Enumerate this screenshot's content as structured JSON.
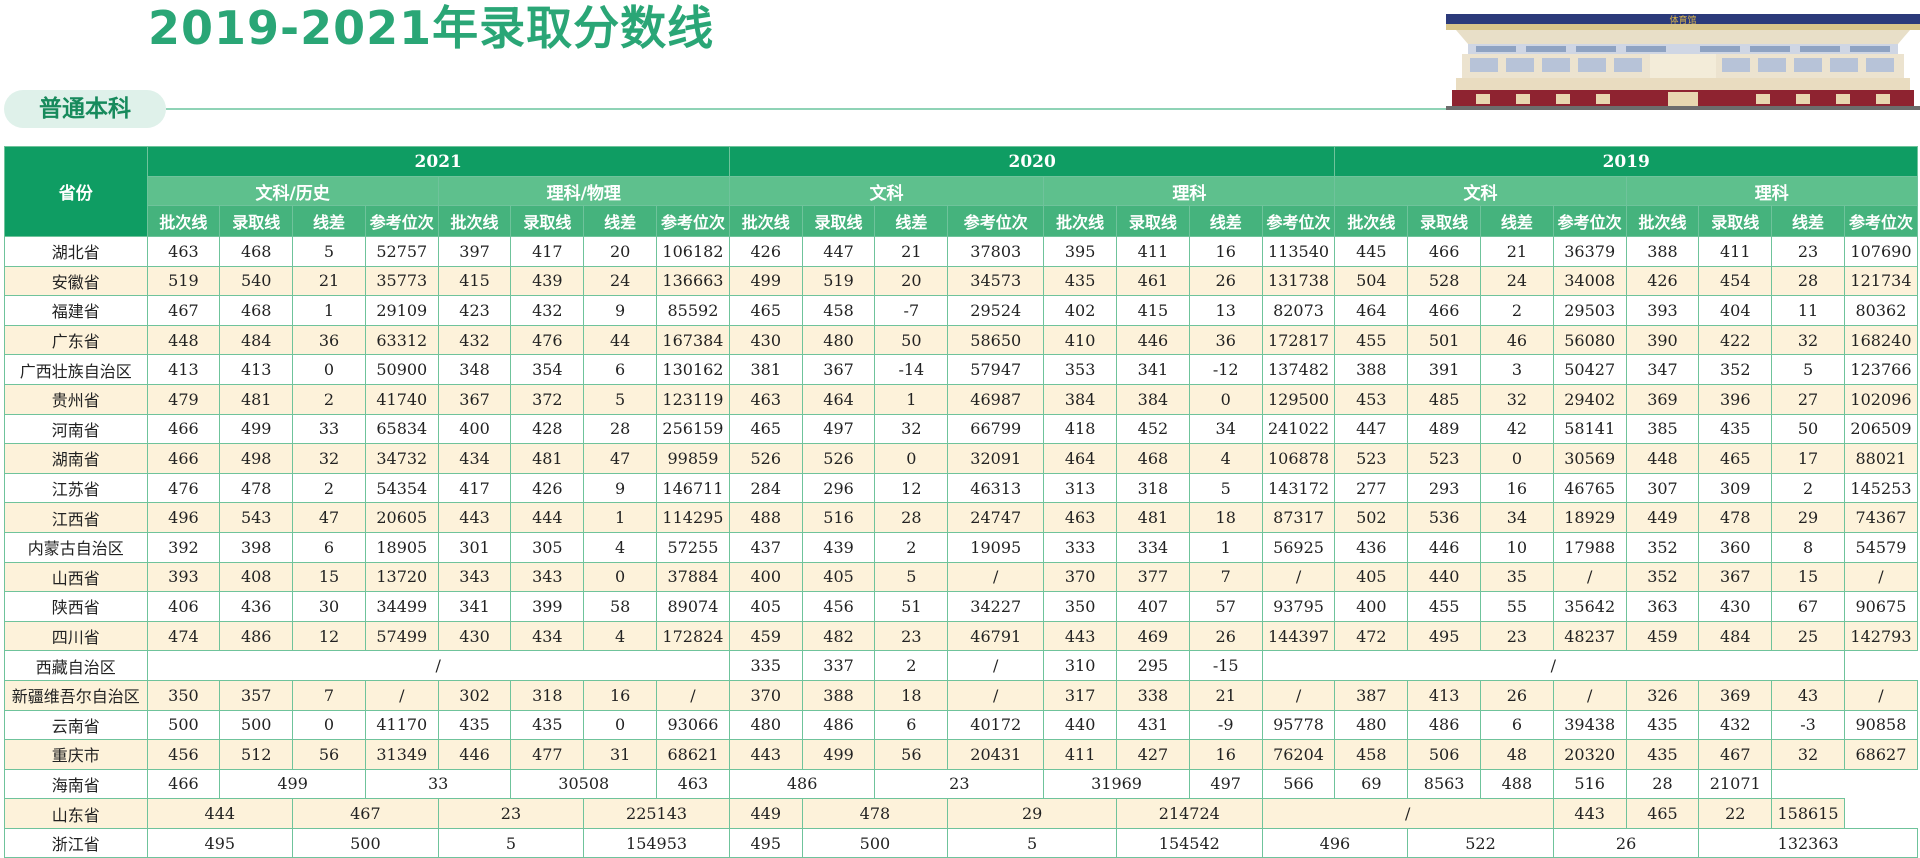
{
  "title": "2019-2021年录取分数线",
  "section_label": "普通本科",
  "building_sign": "体育馆",
  "colors": {
    "accent": "#0f9d63",
    "title": "#2aa676",
    "stripe": "#fdf2da"
  },
  "table": {
    "province_header": "省份",
    "years": [
      "2021",
      "2020",
      "2019"
    ],
    "groups": [
      "文科/历史",
      "理科/物理",
      "文科",
      "理科",
      "文科",
      "理科"
    ],
    "columns": [
      "批次线",
      "录取线",
      "线差",
      "参考位次"
    ],
    "rows": [
      {
        "name": "湖北省",
        "cells": [
          "463",
          "468",
          "5",
          "52757",
          "397",
          "417",
          "20",
          "106182",
          "426",
          "447",
          "21",
          "37803",
          "395",
          "411",
          "16",
          "113540",
          "445",
          "466",
          "21",
          "36379",
          "388",
          "411",
          "23",
          "107690"
        ]
      },
      {
        "name": "安徽省",
        "cells": [
          "519",
          "540",
          "21",
          "35773",
          "415",
          "439",
          "24",
          "136663",
          "499",
          "519",
          "20",
          "34573",
          "435",
          "461",
          "26",
          "131738",
          "504",
          "528",
          "24",
          "34008",
          "426",
          "454",
          "28",
          "121734"
        ]
      },
      {
        "name": "福建省",
        "cells": [
          "467",
          "468",
          "1",
          "29109",
          "423",
          "432",
          "9",
          "85592",
          "465",
          "458",
          "-7",
          "29524",
          "402",
          "415",
          "13",
          "82073",
          "464",
          "466",
          "2",
          "29503",
          "393",
          "404",
          "11",
          "80362"
        ]
      },
      {
        "name": "广东省",
        "cells": [
          "448",
          "484",
          "36",
          "63312",
          "432",
          "476",
          "44",
          "167384",
          "430",
          "480",
          "50",
          "58650",
          "410",
          "446",
          "36",
          "172817",
          "455",
          "501",
          "46",
          "56080",
          "390",
          "422",
          "32",
          "168240"
        ]
      },
      {
        "name": "广西壮族自治区",
        "cells": [
          "413",
          "413",
          "0",
          "50900",
          "348",
          "354",
          "6",
          "130162",
          "381",
          "367",
          "-14",
          "57947",
          "353",
          "341",
          "-12",
          "137482",
          "388",
          "391",
          "3",
          "50427",
          "347",
          "352",
          "5",
          "123766"
        ]
      },
      {
        "name": "贵州省",
        "cells": [
          "479",
          "481",
          "2",
          "41740",
          "367",
          "372",
          "5",
          "123119",
          "463",
          "464",
          "1",
          "46987",
          "384",
          "384",
          "0",
          "129500",
          "453",
          "485",
          "32",
          "29402",
          "369",
          "396",
          "27",
          "102096"
        ]
      },
      {
        "name": "河南省",
        "cells": [
          "466",
          "499",
          "33",
          "65834",
          "400",
          "428",
          "28",
          "256159",
          "465",
          "497",
          "32",
          "66799",
          "418",
          "452",
          "34",
          "241022",
          "447",
          "489",
          "42",
          "58141",
          "385",
          "435",
          "50",
          "206509"
        ]
      },
      {
        "name": "湖南省",
        "cells": [
          "466",
          "498",
          "32",
          "34732",
          "434",
          "481",
          "47",
          "99859",
          "526",
          "526",
          "0",
          "32091",
          "464",
          "468",
          "4",
          "106878",
          "523",
          "523",
          "0",
          "30569",
          "448",
          "465",
          "17",
          "88021"
        ]
      },
      {
        "name": "江苏省",
        "cells": [
          "476",
          "478",
          "2",
          "54354",
          "417",
          "426",
          "9",
          "146711",
          "284",
          "296",
          "12",
          "46313",
          "313",
          "318",
          "5",
          "143172",
          "277",
          "293",
          "16",
          "46765",
          "307",
          "309",
          "2",
          "145253"
        ]
      },
      {
        "name": "江西省",
        "cells": [
          "496",
          "543",
          "47",
          "20605",
          "443",
          "444",
          "1",
          "114295",
          "488",
          "516",
          "28",
          "24747",
          "463",
          "481",
          "18",
          "87317",
          "502",
          "536",
          "34",
          "18929",
          "449",
          "478",
          "29",
          "74367"
        ]
      },
      {
        "name": "内蒙古自治区",
        "cells": [
          "392",
          "398",
          "6",
          "18905",
          "301",
          "305",
          "4",
          "57255",
          "437",
          "439",
          "2",
          "19095",
          "333",
          "334",
          "1",
          "56925",
          "436",
          "446",
          "10",
          "17988",
          "352",
          "360",
          "8",
          "54579"
        ]
      },
      {
        "name": "山西省",
        "cells": [
          "393",
          "408",
          "15",
          "13720",
          "343",
          "343",
          "0",
          "37884",
          "400",
          "405",
          "5",
          "/",
          "370",
          "377",
          "7",
          "/",
          "405",
          "440",
          "35",
          "/",
          "352",
          "367",
          "15",
          "/"
        ]
      },
      {
        "name": "陕西省",
        "cells": [
          "406",
          "436",
          "30",
          "34499",
          "341",
          "399",
          "58",
          "89074",
          "405",
          "456",
          "51",
          "34227",
          "350",
          "407",
          "57",
          "93795",
          "400",
          "455",
          "55",
          "35642",
          "363",
          "430",
          "67",
          "90675"
        ]
      },
      {
        "name": "四川省",
        "cells": [
          "474",
          "486",
          "12",
          "57499",
          "430",
          "434",
          "4",
          "172824",
          "459",
          "482",
          "23",
          "46791",
          "443",
          "469",
          "26",
          "144397",
          "472",
          "495",
          "23",
          "48237",
          "459",
          "484",
          "25",
          "142793"
        ]
      },
      {
        "name": "西藏自治区",
        "special": "tibet",
        "cells": [
          "/",
          "335",
          "337",
          "2",
          "/",
          "310",
          "295",
          "-15",
          "/"
        ]
      },
      {
        "name": "新疆维吾尔自治区",
        "cells": [
          "350",
          "357",
          "7",
          "/",
          "302",
          "318",
          "16",
          "/",
          "370",
          "388",
          "18",
          "/",
          "317",
          "338",
          "21",
          "/",
          "387",
          "413",
          "26",
          "/",
          "326",
          "369",
          "43",
          "/"
        ]
      },
      {
        "name": "云南省",
        "cells": [
          "500",
          "500",
          "0",
          "41170",
          "435",
          "435",
          "0",
          "93066",
          "480",
          "486",
          "6",
          "40172",
          "440",
          "431",
          "-9",
          "95778",
          "480",
          "486",
          "6",
          "39438",
          "435",
          "432",
          "-3",
          "90858"
        ]
      },
      {
        "name": "重庆市",
        "cells": [
          "456",
          "512",
          "56",
          "31349",
          "446",
          "477",
          "31",
          "68621",
          "443",
          "499",
          "56",
          "20431",
          "411",
          "427",
          "16",
          "76204",
          "458",
          "506",
          "48",
          "20320",
          "435",
          "467",
          "32",
          "68627"
        ]
      },
      {
        "name": "海南省",
        "special": "hainan",
        "cells": [
          "466",
          "499",
          "33",
          "30508",
          "463",
          "486",
          "23",
          "31969",
          "497",
          "566",
          "69",
          "8563",
          "488",
          "516",
          "28",
          "21071"
        ]
      },
      {
        "name": "山东省",
        "special": "shandong",
        "cells": [
          "444",
          "467",
          "23",
          "225143",
          "449",
          "478",
          "29",
          "214724",
          "/",
          "443",
          "465",
          "22",
          "158615"
        ]
      },
      {
        "name": "浙江省",
        "special": "zhejiang",
        "cells": [
          "495",
          "500",
          "5",
          "154953",
          "495",
          "500",
          "5",
          "154542",
          "496",
          "522",
          "26",
          "132363"
        ]
      }
    ]
  }
}
